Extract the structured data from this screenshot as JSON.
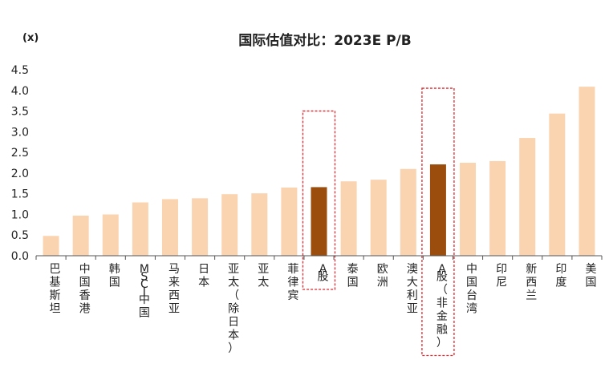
{
  "chart_data": {
    "type": "bar",
    "title": "国际估值对比：2023E P/B",
    "unit_label": "(x)",
    "xlabel": "",
    "ylabel": "",
    "ylim": [
      0,
      4.5
    ],
    "yticks": [
      "0.0",
      "0.5",
      "1.0",
      "1.5",
      "2.0",
      "2.5",
      "3.0",
      "3.5",
      "4.0",
      "4.5"
    ],
    "grid": false,
    "categories": [
      "巴基斯坦",
      "中国香港",
      "韩国",
      "MSCI中国",
      "马来西亚",
      "日本",
      "亚太（除日本）",
      "亚太",
      "菲律宾",
      "A股",
      "泰国",
      "欧洲",
      "澳大利亚",
      "A股（非金融）",
      "中国台湾",
      "印尼",
      "新西兰",
      "印度",
      "美国"
    ],
    "values": [
      0.48,
      0.97,
      1.0,
      1.29,
      1.37,
      1.39,
      1.49,
      1.51,
      1.65,
      1.66,
      1.8,
      1.84,
      2.1,
      2.21,
      2.25,
      2.29,
      2.85,
      3.44,
      4.09
    ],
    "highlighted": [
      "A股",
      "A股（非金融）"
    ],
    "colors": {
      "bar": "#FAD4B0",
      "highlight": "#9B4D0D",
      "box": "#E0282E",
      "axis": "#555555"
    }
  }
}
